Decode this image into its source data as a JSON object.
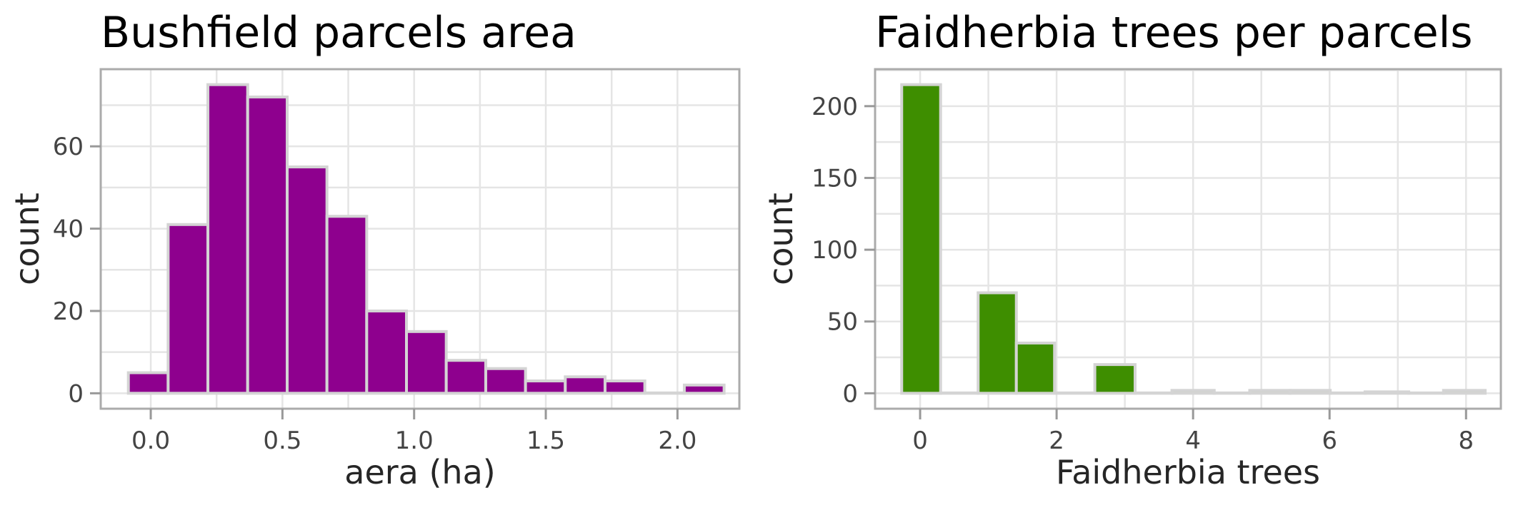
{
  "figure": {
    "background": "#ffffff",
    "grid_color": "#e5e5e5",
    "spine_color": "#ababab",
    "tick_mark_color": "#999999",
    "tick_label_color": "#444444",
    "axis_label_color": "#262626",
    "title_color": "#000000"
  },
  "chart_data": [
    {
      "type": "bar",
      "subtype": "histogram",
      "title": "Bushfield parcels area",
      "xlabel": "aera (ha)",
      "ylabel": "count",
      "bar_color": "#8e008e",
      "bar_edge_color": "#d4d4d4",
      "bin_edges": [
        -0.085,
        0.066,
        0.217,
        0.368,
        0.518,
        0.669,
        0.82,
        0.971,
        1.122,
        1.272,
        1.423,
        1.574,
        1.725,
        1.876,
        2.026,
        2.177
      ],
      "counts": [
        5,
        41,
        75,
        72,
        55,
        43,
        20,
        15,
        8,
        6,
        3,
        4,
        3,
        0,
        2
      ],
      "x_ticks": [
        {
          "value": 0.0,
          "label": "0.0"
        },
        {
          "value": 0.5,
          "label": "0.5"
        },
        {
          "value": 1.0,
          "label": "1.0"
        },
        {
          "value": 1.5,
          "label": "1.5"
        },
        {
          "value": 2.0,
          "label": "2.0"
        }
      ],
      "y_ticks": [
        {
          "value": 0,
          "label": "0"
        },
        {
          "value": 20,
          "label": "20"
        },
        {
          "value": 40,
          "label": "40"
        },
        {
          "value": 60,
          "label": "60"
        }
      ],
      "xlim": [
        -0.19,
        2.235
      ],
      "ylim": [
        -3.75,
        78.75
      ],
      "x_grid_step": 0.25,
      "y_grid_step": 10,
      "grid": true,
      "legend": null
    },
    {
      "type": "bar",
      "subtype": "histogram",
      "title": "Faidherbia trees per parcels",
      "xlabel": "Faidherbia trees",
      "ylabel": "count",
      "bar_color": "#3e8e00",
      "bar_edge_color": "#d4d4d4",
      "bin_edges": [
        -0.27,
        0.3,
        0.85,
        1.41,
        1.97,
        2.56,
        3.15,
        3.69,
        4.31,
        4.83,
        5.42,
        6.01,
        6.52,
        7.16,
        7.67,
        8.28
      ],
      "counts": [
        215,
        0,
        70,
        35,
        0,
        20,
        0,
        2,
        0,
        2,
        2,
        0,
        1,
        0,
        2
      ],
      "x_ticks": [
        {
          "value": 0,
          "label": "0"
        },
        {
          "value": 2,
          "label": "2"
        },
        {
          "value": 4,
          "label": "4"
        },
        {
          "value": 6,
          "label": "6"
        },
        {
          "value": 8,
          "label": "8"
        }
      ],
      "y_ticks": [
        {
          "value": 0,
          "label": "0"
        },
        {
          "value": 50,
          "label": "50"
        },
        {
          "value": 100,
          "label": "100"
        },
        {
          "value": 150,
          "label": "150"
        },
        {
          "value": 200,
          "label": "200"
        }
      ],
      "xlim": [
        -0.66,
        8.51
      ],
      "ylim": [
        -10.75,
        225.75
      ],
      "x_grid_step": 1,
      "y_grid_step": 25,
      "grid": true,
      "legend": null
    }
  ]
}
